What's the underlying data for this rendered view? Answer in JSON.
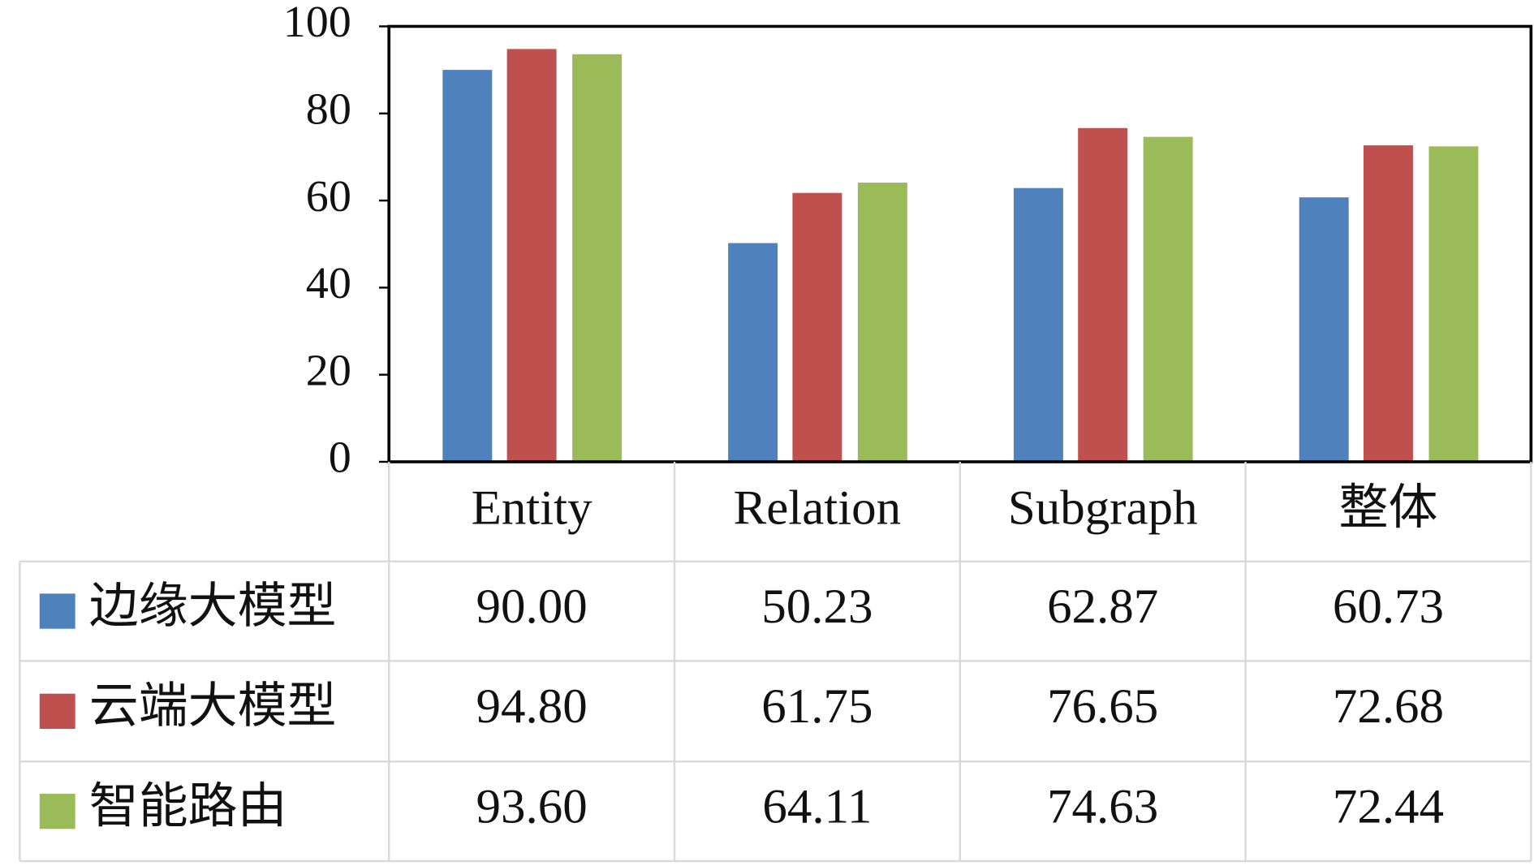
{
  "chart_data": {
    "type": "bar",
    "categories": [
      "Entity",
      "Relation",
      "Subgraph",
      "整体"
    ],
    "series": [
      {
        "name": "边缘大模型",
        "color": "#4f81bd",
        "values": [
          90,
          50.23,
          62.87,
          60.73
        ],
        "value_labels": [
          "90.00",
          "50.23",
          "62.87",
          "60.73"
        ]
      },
      {
        "name": "云端大模型",
        "color": "#c0504d",
        "values": [
          94.8,
          61.75,
          76.65,
          72.68
        ],
        "value_labels": [
          "94.80",
          "61.75",
          "76.65",
          "72.68"
        ]
      },
      {
        "name": "智能路由",
        "color": "#9bbb59",
        "values": [
          93.6,
          64.11,
          74.63,
          72.44
        ],
        "value_labels": [
          "93.60",
          "64.11",
          "74.63",
          "72.44"
        ]
      }
    ],
    "ylim": [
      0,
      100
    ],
    "yticks": [
      0,
      20,
      40,
      60,
      80,
      100
    ],
    "data_table": true
  }
}
